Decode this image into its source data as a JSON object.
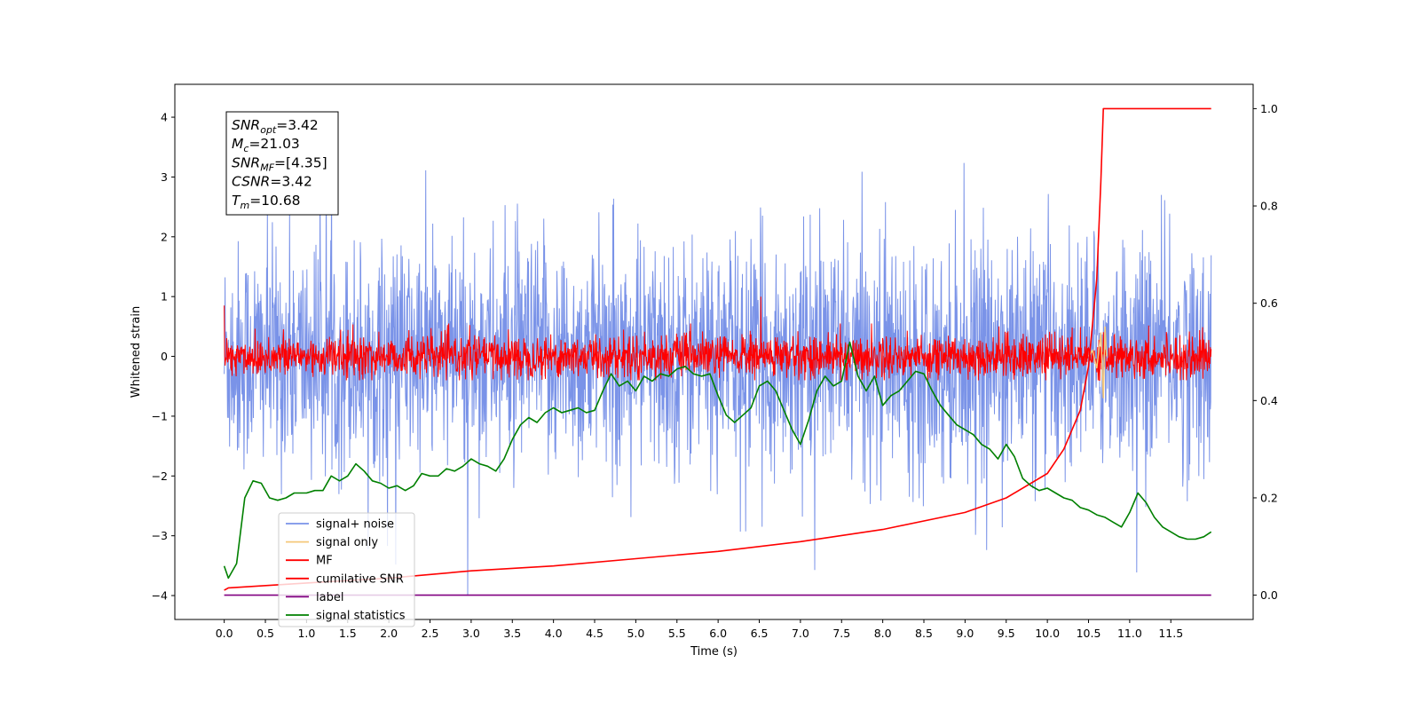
{
  "chart_data": {
    "type": "line",
    "xlabel": "Time (s)",
    "ylabel": "Whitened strain",
    "xlim": [
      -0.6,
      12.5
    ],
    "ylim_left": [
      -4.4,
      4.55
    ],
    "ylim_right": [
      -0.05,
      1.05
    ],
    "x_ticks": [
      "0.0",
      "0.5",
      "1.0",
      "1.5",
      "2.0",
      "2.5",
      "3.0",
      "3.5",
      "4.0",
      "4.5",
      "5.0",
      "5.5",
      "6.0",
      "6.5",
      "7.0",
      "7.5",
      "8.0",
      "8.5",
      "9.0",
      "9.5",
      "10.0",
      "10.5",
      "11.0",
      "11.5"
    ],
    "y_ticks_left": [
      "4",
      "3",
      "2",
      "1",
      "0",
      "−1",
      "−2",
      "−3",
      "−4"
    ],
    "y_ticks_right": [
      "1.0",
      "0.8",
      "0.6",
      "0.4",
      "0.2",
      "0.0"
    ],
    "grid": false,
    "legend_position": "lower-left",
    "info_box": {
      "lines": [
        {
          "base": "SNR",
          "sub": "opt",
          "value": "=3.42"
        },
        {
          "base": "M",
          "sub": "c",
          "value": "=21.03"
        },
        {
          "base": "SNR",
          "sub": "MF",
          "value": "=[4.35]"
        },
        {
          "base": "CSNR",
          "sub": "",
          "value": "=3.42"
        },
        {
          "base": "T",
          "sub": "m",
          "value": "=10.68"
        }
      ]
    },
    "series": [
      {
        "name": "signal+ noise",
        "color": "#7a93e8",
        "axis": "left",
        "description_stats": {
          "mean": 0.0,
          "std": 0.95,
          "band": [
            -2.0,
            2.0
          ],
          "extremes": [
            -4.0,
            4.2
          ]
        }
      },
      {
        "name": "signal only",
        "color": "#f5c87a",
        "axis": "left",
        "x": [
          10.5,
          10.55,
          10.6,
          10.65,
          10.68,
          10.7,
          10.72
        ],
        "y": [
          0.0,
          0.1,
          -0.2,
          0.4,
          -0.7,
          0.5,
          0.0
        ]
      },
      {
        "name": "MF",
        "color": "#ff0000",
        "axis": "left",
        "description_stats": {
          "mean": 0.0,
          "band": [
            -0.35,
            0.35
          ],
          "extremes": [
            -0.4,
            1.0
          ]
        }
      },
      {
        "name": "cumilative SNR",
        "color": "#ff0000",
        "axis": "right",
        "x": [
          0.0,
          0.05,
          1.0,
          2.0,
          3.0,
          4.0,
          5.0,
          6.0,
          7.0,
          8.0,
          9.0,
          9.5,
          10.0,
          10.2,
          10.4,
          10.5,
          10.6,
          10.65,
          10.68,
          11.0,
          11.5,
          11.99
        ],
        "y": [
          0.01,
          0.015,
          0.025,
          0.035,
          0.05,
          0.06,
          0.075,
          0.09,
          0.11,
          0.135,
          0.17,
          0.2,
          0.25,
          0.3,
          0.38,
          0.47,
          0.65,
          0.85,
          1.0,
          1.0,
          1.0,
          1.0
        ]
      },
      {
        "name": "label",
        "color": "#800080",
        "axis": "right",
        "x": [
          0.0,
          11.99
        ],
        "y": [
          0.0,
          0.0
        ]
      },
      {
        "name": "signal statistics",
        "color": "#008000",
        "axis": "right",
        "x": [
          0.0,
          0.05,
          0.15,
          0.25,
          0.35,
          0.45,
          0.55,
          0.65,
          0.75,
          0.85,
          1.0,
          1.1,
          1.2,
          1.3,
          1.4,
          1.5,
          1.6,
          1.7,
          1.8,
          1.9,
          2.0,
          2.1,
          2.2,
          2.3,
          2.4,
          2.5,
          2.6,
          2.7,
          2.8,
          2.9,
          3.0,
          3.1,
          3.2,
          3.3,
          3.4,
          3.5,
          3.6,
          3.7,
          3.8,
          3.9,
          4.0,
          4.1,
          4.2,
          4.3,
          4.4,
          4.5,
          4.6,
          4.7,
          4.8,
          4.9,
          5.0,
          5.1,
          5.2,
          5.3,
          5.4,
          5.5,
          5.6,
          5.7,
          5.8,
          5.9,
          6.0,
          6.1,
          6.2,
          6.3,
          6.4,
          6.5,
          6.6,
          6.7,
          6.8,
          6.9,
          7.0,
          7.1,
          7.2,
          7.3,
          7.4,
          7.5,
          7.6,
          7.7,
          7.8,
          7.9,
          8.0,
          8.1,
          8.2,
          8.3,
          8.4,
          8.5,
          8.6,
          8.7,
          8.8,
          8.9,
          9.0,
          9.1,
          9.2,
          9.3,
          9.4,
          9.5,
          9.6,
          9.7,
          9.8,
          9.9,
          10.0,
          10.1,
          10.2,
          10.3,
          10.4,
          10.5,
          10.6,
          10.7,
          10.8,
          10.9,
          11.0,
          11.1,
          11.2,
          11.3,
          11.4,
          11.5,
          11.6,
          11.7,
          11.8,
          11.9,
          11.99
        ],
        "y": [
          0.06,
          0.035,
          0.065,
          0.2,
          0.235,
          0.23,
          0.2,
          0.195,
          0.2,
          0.21,
          0.21,
          0.215,
          0.215,
          0.245,
          0.235,
          0.245,
          0.27,
          0.255,
          0.235,
          0.23,
          0.22,
          0.225,
          0.215,
          0.225,
          0.25,
          0.245,
          0.245,
          0.26,
          0.255,
          0.265,
          0.28,
          0.27,
          0.265,
          0.255,
          0.28,
          0.32,
          0.35,
          0.365,
          0.355,
          0.375,
          0.385,
          0.375,
          0.38,
          0.385,
          0.375,
          0.38,
          0.42,
          0.455,
          0.43,
          0.44,
          0.42,
          0.45,
          0.44,
          0.455,
          0.45,
          0.465,
          0.47,
          0.455,
          0.45,
          0.455,
          0.41,
          0.37,
          0.355,
          0.37,
          0.385,
          0.43,
          0.44,
          0.42,
          0.38,
          0.34,
          0.31,
          0.36,
          0.42,
          0.45,
          0.43,
          0.44,
          0.52,
          0.45,
          0.42,
          0.45,
          0.39,
          0.41,
          0.42,
          0.44,
          0.46,
          0.455,
          0.42,
          0.39,
          0.37,
          0.35,
          0.34,
          0.33,
          0.31,
          0.3,
          0.28,
          0.31,
          0.285,
          0.24,
          0.225,
          0.215,
          0.22,
          0.21,
          0.2,
          0.195,
          0.18,
          0.175,
          0.165,
          0.16,
          0.15,
          0.14,
          0.17,
          0.21,
          0.19,
          0.16,
          0.14,
          0.13,
          0.12,
          0.115,
          0.115,
          0.12,
          0.13
        ]
      }
    ]
  }
}
